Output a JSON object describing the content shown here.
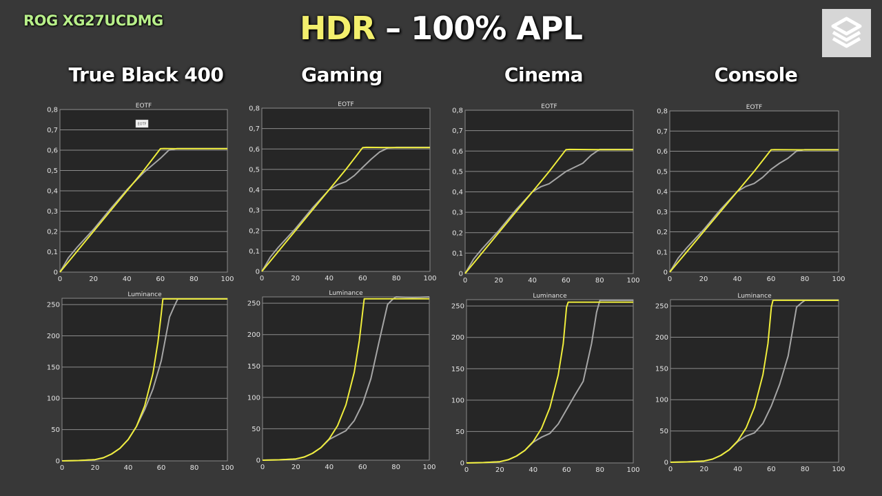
{
  "header": {
    "model": "ROG XG27UCDMG",
    "title_highlight": "HDR",
    "title_rest": " – 100% APL"
  },
  "logo": {
    "icon": "stacked-layers-icon",
    "bg": "#d6d6d6",
    "fg": "#ffffff"
  },
  "colors": {
    "reference": "#f0ee3c",
    "measured": "#a6a6a6",
    "background": "#383838",
    "plot_bg": "#262626"
  },
  "columns": [
    "True Black 400",
    "Gaming",
    "Cinema",
    "Console"
  ],
  "tooltip": "EOTF",
  "chart_data": [
    {
      "panel": "True Black 400",
      "type": "line",
      "title": "EOTF",
      "xlim": [
        0,
        100
      ],
      "ylim": [
        0,
        0.8
      ],
      "xticks": [
        "0",
        "20",
        "40",
        "60",
        "80",
        "100"
      ],
      "yticks": [
        "0",
        "0,1",
        "0,2",
        "0,3",
        "0,4",
        "0,5",
        "0,6",
        "0,7",
        "0,8"
      ],
      "series": [
        {
          "role": "reference",
          "x": [
            0,
            10,
            20,
            30,
            40,
            50,
            60,
            62,
            70,
            100
          ],
          "y": [
            0,
            0.1,
            0.2,
            0.3,
            0.4,
            0.5,
            0.607,
            0.608,
            0.607,
            0.607
          ]
        },
        {
          "role": "measured",
          "x": [
            0,
            5,
            10,
            20,
            30,
            40,
            50,
            60,
            65,
            70,
            100
          ],
          "y": [
            0,
            0.07,
            0.12,
            0.21,
            0.31,
            0.405,
            0.49,
            0.56,
            0.6,
            0.608,
            0.608
          ]
        }
      ]
    },
    {
      "panel": "True Black 400",
      "type": "line",
      "title": "Luminance",
      "xlim": [
        0,
        100
      ],
      "ylim": [
        0,
        260
      ],
      "xticks": [
        "0",
        "20",
        "40",
        "60",
        "80",
        "100"
      ],
      "yticks": [
        "0",
        "50",
        "100",
        "150",
        "200",
        "250"
      ],
      "series": [
        {
          "role": "reference",
          "x": [
            0,
            10,
            20,
            25,
            30,
            35,
            40,
            45,
            50,
            55,
            58,
            60,
            61,
            70,
            100
          ],
          "y": [
            0,
            0.5,
            2,
            5,
            11,
            20,
            34,
            55,
            88,
            140,
            190,
            235,
            259,
            259,
            259
          ]
        },
        {
          "role": "measured",
          "x": [
            0,
            10,
            20,
            25,
            30,
            35,
            40,
            45,
            50,
            55,
            60,
            65,
            68,
            70,
            100
          ],
          "y": [
            0,
            0.5,
            2,
            5,
            11,
            20,
            34,
            55,
            82,
            115,
            160,
            230,
            248,
            259,
            259
          ]
        }
      ]
    },
    {
      "panel": "Gaming",
      "type": "line",
      "title": "EOTF",
      "xlim": [
        0,
        100
      ],
      "ylim": [
        0,
        0.8
      ],
      "xticks": [
        "0",
        "20",
        "40",
        "60",
        "80",
        "100"
      ],
      "yticks": [
        "0",
        "0,1",
        "0,2",
        "0,3",
        "0,4",
        "0,5",
        "0,6",
        "0,7",
        "0,8"
      ],
      "series": [
        {
          "role": "reference",
          "x": [
            0,
            10,
            20,
            30,
            40,
            50,
            60,
            62,
            80,
            100
          ],
          "y": [
            0,
            0.1,
            0.2,
            0.3,
            0.4,
            0.5,
            0.607,
            0.608,
            0.607,
            0.607
          ]
        },
        {
          "role": "measured",
          "x": [
            0,
            5,
            10,
            20,
            30,
            40,
            45,
            50,
            55,
            60,
            65,
            70,
            75,
            80,
            100
          ],
          "y": [
            0,
            0.07,
            0.12,
            0.21,
            0.31,
            0.4,
            0.425,
            0.44,
            0.47,
            0.51,
            0.55,
            0.585,
            0.605,
            0.608,
            0.608
          ]
        }
      ]
    },
    {
      "panel": "Gaming",
      "type": "line",
      "title": "Luminance",
      "xlim": [
        0,
        100
      ],
      "ylim": [
        0,
        260
      ],
      "xticks": [
        "0",
        "20",
        "40",
        "60",
        "80",
        "100"
      ],
      "yticks": [
        "0",
        "50",
        "100",
        "150",
        "200",
        "250"
      ],
      "series": [
        {
          "role": "reference",
          "x": [
            0,
            10,
            20,
            25,
            30,
            35,
            40,
            45,
            50,
            55,
            58,
            60,
            61,
            80,
            100
          ],
          "y": [
            0,
            0.5,
            2,
            5,
            11,
            20,
            34,
            55,
            88,
            140,
            190,
            235,
            257,
            257,
            257
          ]
        },
        {
          "role": "measured",
          "x": [
            0,
            10,
            20,
            25,
            30,
            35,
            40,
            45,
            50,
            55,
            60,
            65,
            70,
            75,
            78,
            80,
            90,
            100
          ],
          "y": [
            0,
            0.5,
            2,
            5,
            11,
            20,
            33,
            40,
            47,
            63,
            90,
            130,
            190,
            248,
            256,
            261,
            259,
            262
          ]
        }
      ]
    },
    {
      "panel": "Cinema",
      "type": "line",
      "title": "EOTF",
      "xlim": [
        0,
        100
      ],
      "ylim": [
        0,
        0.8
      ],
      "xticks": [
        "0",
        "20",
        "40",
        "60",
        "80",
        "100"
      ],
      "yticks": [
        "0",
        "0,1",
        "0,2",
        "0,3",
        "0,4",
        "0,5",
        "0,6",
        "0,7",
        "0,8"
      ],
      "series": [
        {
          "role": "reference",
          "x": [
            0,
            10,
            20,
            30,
            40,
            50,
            60,
            62,
            80,
            100
          ],
          "y": [
            0,
            0.1,
            0.2,
            0.3,
            0.4,
            0.5,
            0.607,
            0.608,
            0.607,
            0.607
          ]
        },
        {
          "role": "measured",
          "x": [
            0,
            5,
            10,
            20,
            30,
            40,
            45,
            50,
            55,
            60,
            65,
            70,
            75,
            80,
            100
          ],
          "y": [
            0,
            0.07,
            0.12,
            0.21,
            0.31,
            0.4,
            0.425,
            0.44,
            0.47,
            0.5,
            0.52,
            0.54,
            0.58,
            0.608,
            0.608
          ]
        }
      ]
    },
    {
      "panel": "Cinema",
      "type": "line",
      "title": "Luminance",
      "xlim": [
        0,
        100
      ],
      "ylim": [
        0,
        260
      ],
      "xticks": [
        "0",
        "20",
        "40",
        "60",
        "80",
        "100"
      ],
      "yticks": [
        "0",
        "50",
        "100",
        "150",
        "200",
        "250"
      ],
      "series": [
        {
          "role": "reference",
          "x": [
            0,
            10,
            20,
            25,
            30,
            35,
            40,
            45,
            50,
            55,
            58,
            60,
            61,
            80,
            100
          ],
          "y": [
            0,
            0.5,
            2,
            5,
            11,
            20,
            34,
            55,
            88,
            140,
            190,
            248,
            256,
            256,
            256
          ]
        },
        {
          "role": "measured",
          "x": [
            0,
            10,
            20,
            25,
            30,
            35,
            40,
            45,
            50,
            55,
            60,
            65,
            70,
            75,
            78,
            80,
            100
          ],
          "y": [
            0,
            0.5,
            2,
            5,
            11,
            20,
            33,
            41,
            47,
            62,
            85,
            108,
            130,
            190,
            240,
            259,
            259
          ]
        }
      ]
    },
    {
      "panel": "Console",
      "type": "line",
      "title": "EOTF",
      "xlim": [
        0,
        100
      ],
      "ylim": [
        0,
        0.8
      ],
      "xticks": [
        "0",
        "20",
        "40",
        "60",
        "80",
        "100"
      ],
      "yticks": [
        "0",
        "0,1",
        "0,2",
        "0,3",
        "0,4",
        "0,5",
        "0,6",
        "0,7",
        "0,8"
      ],
      "series": [
        {
          "role": "reference",
          "x": [
            0,
            10,
            20,
            30,
            40,
            50,
            60,
            62,
            78,
            100
          ],
          "y": [
            0,
            0.1,
            0.2,
            0.3,
            0.4,
            0.5,
            0.607,
            0.608,
            0.607,
            0.607
          ]
        },
        {
          "role": "measured",
          "x": [
            0,
            5,
            10,
            20,
            30,
            40,
            45,
            50,
            55,
            60,
            65,
            70,
            75,
            80,
            100
          ],
          "y": [
            0,
            0.07,
            0.12,
            0.21,
            0.31,
            0.4,
            0.425,
            0.44,
            0.47,
            0.51,
            0.54,
            0.565,
            0.6,
            0.608,
            0.608
          ]
        }
      ]
    },
    {
      "panel": "Console",
      "type": "line",
      "title": "Luminance",
      "xlim": [
        0,
        100
      ],
      "ylim": [
        0,
        260
      ],
      "xticks": [
        "0",
        "20",
        "40",
        "60",
        "80",
        "100"
      ],
      "yticks": [
        "0",
        "50",
        "100",
        "150",
        "200",
        "250"
      ],
      "series": [
        {
          "role": "reference",
          "x": [
            0,
            10,
            20,
            25,
            30,
            35,
            40,
            45,
            50,
            55,
            58,
            60,
            61,
            80,
            100
          ],
          "y": [
            0,
            0.5,
            2,
            5,
            11,
            20,
            34,
            55,
            88,
            140,
            190,
            248,
            259,
            259,
            259
          ]
        },
        {
          "role": "measured",
          "x": [
            0,
            10,
            20,
            25,
            30,
            35,
            40,
            45,
            50,
            55,
            60,
            65,
            70,
            75,
            78,
            80,
            100
          ],
          "y": [
            0,
            0.5,
            2,
            5,
            11,
            20,
            33,
            42,
            47,
            62,
            90,
            125,
            170,
            248,
            255,
            259,
            259
          ]
        }
      ]
    }
  ]
}
